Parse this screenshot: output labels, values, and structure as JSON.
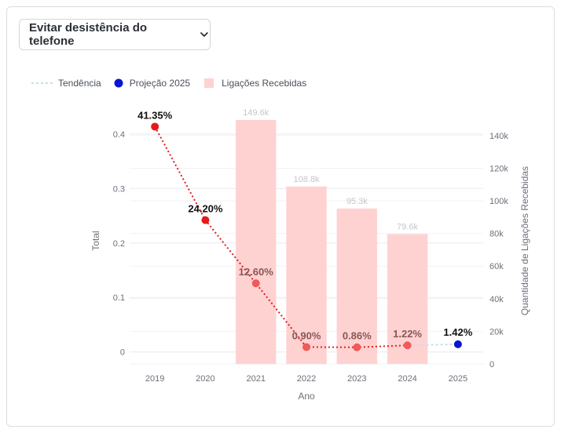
{
  "dropdown": {
    "label": "Evitar desistência do telefone",
    "icon": "chevron-down-icon"
  },
  "legend": [
    {
      "label": "Tendência",
      "kind": "dotted-line",
      "color": "#c9dde6"
    },
    {
      "label": "Projeção 2025",
      "kind": "dot",
      "color": "#0a14d6"
    },
    {
      "label": "Ligações Recebidas",
      "kind": "square",
      "color": "#ffd2d2"
    }
  ],
  "chart_data": {
    "type": "bar+line",
    "xlabel": "Ano",
    "ylabel_left": "Total",
    "ylabel_right": "Quantidade de Ligações Recebidas",
    "categories": [
      "2019",
      "2020",
      "2021",
      "2022",
      "2023",
      "2024",
      "2025"
    ],
    "left_axis": {
      "min": -0.022,
      "max": 0.43,
      "ticks": [
        0,
        0.1,
        0.2,
        0.3,
        0.4
      ],
      "tick_labels": [
        "0",
        "0.1",
        "0.2",
        "0.3",
        "0.4"
      ]
    },
    "right_axis": {
      "min": 0,
      "max": 151000,
      "ticks": [
        0,
        20000,
        40000,
        60000,
        80000,
        100000,
        120000,
        140000
      ],
      "tick_labels": [
        "0",
        "20k",
        "40k",
        "60k",
        "80k",
        "100k",
        "120k",
        "140k"
      ]
    },
    "bars": {
      "name": "Ligações Recebidas",
      "color": "#ffd2d2",
      "values": [
        null,
        null,
        149600,
        108800,
        95300,
        79600,
        null
      ],
      "labels": [
        "",
        "",
        "149.6k",
        "108.8k",
        "95.3k",
        "79.6k",
        ""
      ]
    },
    "line": {
      "name": "Total",
      "color": "#e31b1b",
      "values": [
        0.4135,
        0.242,
        0.126,
        0.009,
        0.0086,
        0.0122,
        null
      ],
      "labels": [
        "41.35%",
        "24.20%",
        "12.60%",
        "0.90%",
        "0.86%",
        "1.22%",
        ""
      ]
    },
    "trend": {
      "name": "Tendência",
      "color": "#c9dde6",
      "values": [
        null,
        null,
        null,
        null,
        null,
        0.0122,
        0.0142
      ]
    },
    "projection": {
      "name": "Projeção 2025",
      "color": "#0a14d6",
      "category": "2025",
      "value": 0.0142,
      "label": "1.42%"
    }
  }
}
